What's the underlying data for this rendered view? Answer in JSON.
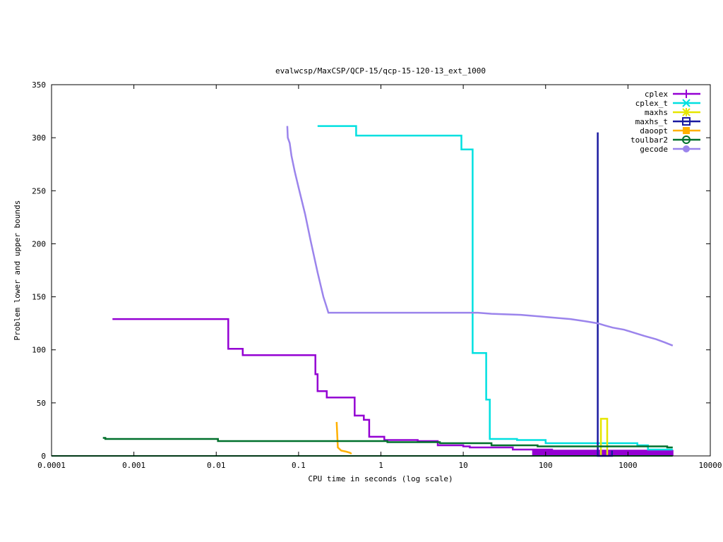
{
  "chart_data": {
    "type": "line",
    "title": "evalwcsp/MaxCSP/QCP-15/qcp-15-120-13_ext_1000",
    "xlabel": "CPU time in seconds (log scale)",
    "ylabel": "Problem lower and upper bounds",
    "xscale": "log",
    "xlim": [
      0.0001,
      10000
    ],
    "ylim": [
      0,
      350
    ],
    "xticks": [
      {
        "value": 0.0001,
        "label": "0.0001"
      },
      {
        "value": 0.001,
        "label": "0.001"
      },
      {
        "value": 0.01,
        "label": "0.01"
      },
      {
        "value": 0.1,
        "label": "0.1"
      },
      {
        "value": 1,
        "label": "1"
      },
      {
        "value": 10,
        "label": "10"
      },
      {
        "value": 100,
        "label": "100"
      },
      {
        "value": 1000,
        "label": "1000"
      },
      {
        "value": 10000,
        "label": "10000"
      }
    ],
    "yticks": [
      {
        "value": 0,
        "label": "0"
      },
      {
        "value": 50,
        "label": "50"
      },
      {
        "value": 100,
        "label": "100"
      },
      {
        "value": 150,
        "label": "150"
      },
      {
        "value": 200,
        "label": "200"
      },
      {
        "value": 250,
        "label": "250"
      },
      {
        "value": 300,
        "label": "300"
      },
      {
        "value": 350,
        "label": "350"
      }
    ],
    "grid": false,
    "legend_position": "top-right",
    "series": [
      {
        "name": "cplex",
        "color": "#9400d3",
        "marker": "plus",
        "step": true,
        "points": [
          [
            0.00055,
            129
          ],
          [
            0.014,
            129
          ],
          [
            0.014,
            101
          ],
          [
            0.021,
            101
          ],
          [
            0.021,
            95
          ],
          [
            0.16,
            95
          ],
          [
            0.16,
            77
          ],
          [
            0.17,
            77
          ],
          [
            0.17,
            61
          ],
          [
            0.22,
            61
          ],
          [
            0.22,
            55
          ],
          [
            0.48,
            55
          ],
          [
            0.48,
            38
          ],
          [
            0.62,
            38
          ],
          [
            0.62,
            34
          ],
          [
            0.72,
            34
          ],
          [
            0.72,
            18
          ],
          [
            1.1,
            18
          ],
          [
            1.1,
            15
          ],
          [
            2.8,
            15
          ],
          [
            2.8,
            14
          ],
          [
            4.9,
            14
          ],
          [
            4.9,
            10
          ],
          [
            10,
            10
          ],
          [
            10,
            9
          ],
          [
            12,
            9
          ],
          [
            12,
            8
          ],
          [
            40,
            8
          ],
          [
            40,
            6
          ],
          [
            120,
            6
          ],
          [
            120,
            5
          ],
          [
            3500,
            5
          ]
        ],
        "lb_points": [
          [
            70,
            0
          ],
          [
            70,
            5
          ],
          [
            3500,
            5
          ],
          [
            3500,
            0
          ]
        ]
      },
      {
        "name": "cplex_t",
        "color": "#00e0e0",
        "marker": "cross",
        "step": true,
        "points": [
          [
            0.17,
            311
          ],
          [
            0.5,
            311
          ],
          [
            0.5,
            302
          ],
          [
            9.5,
            302
          ],
          [
            9.5,
            289
          ],
          [
            13,
            289
          ],
          [
            13,
            97
          ],
          [
            19,
            97
          ],
          [
            19,
            53
          ],
          [
            21,
            53
          ],
          [
            21,
            16
          ],
          [
            45,
            16
          ],
          [
            45,
            15
          ],
          [
            100,
            15
          ],
          [
            100,
            12
          ],
          [
            1300,
            12
          ],
          [
            1300,
            10
          ],
          [
            1750,
            10
          ],
          [
            1750,
            6
          ],
          [
            3500,
            6
          ]
        ]
      },
      {
        "name": "maxhs",
        "color": "#e6e600",
        "marker": "star",
        "step": true,
        "points": [
          [
            470,
            0
          ],
          [
            470,
            35
          ],
          [
            560,
            35
          ],
          [
            560,
            0
          ]
        ]
      },
      {
        "name": "maxhs_t",
        "color": "#1a1aa0",
        "marker": "square",
        "step": true,
        "points": [
          [
            430,
            0
          ],
          [
            430,
            305
          ],
          [
            430,
            0
          ],
          [
            640,
            0
          ],
          [
            640,
            5
          ]
        ]
      },
      {
        "name": "daoopt",
        "color": "#ffb000",
        "marker": "filled-square",
        "step": false,
        "points": [
          [
            0.29,
            32
          ],
          [
            0.3,
            8
          ],
          [
            0.33,
            5
          ],
          [
            0.38,
            4
          ],
          [
            0.42,
            3
          ],
          [
            0.44,
            2
          ]
        ]
      },
      {
        "name": "toulbar2",
        "color": "#00702c",
        "marker": "circle",
        "step": true,
        "points": [
          [
            0.00042,
            17
          ],
          [
            0.00045,
            17
          ],
          [
            0.00045,
            16
          ],
          [
            0.0105,
            16
          ],
          [
            0.0105,
            14
          ],
          [
            1.2,
            14
          ],
          [
            1.2,
            13
          ],
          [
            5.2,
            13
          ],
          [
            5.2,
            12
          ],
          [
            22,
            12
          ],
          [
            22,
            10
          ],
          [
            80,
            10
          ],
          [
            80,
            9
          ],
          [
            3000,
            9
          ],
          [
            3000,
            8
          ],
          [
            3500,
            8
          ]
        ],
        "lb_points": [
          [
            0.0001,
            0
          ],
          [
            3500,
            0
          ]
        ]
      },
      {
        "name": "gecode",
        "color": "#9b84ec",
        "marker": "filled-circle",
        "step": false,
        "points": [
          [
            0.073,
            311
          ],
          [
            0.074,
            300
          ],
          [
            0.078,
            295
          ],
          [
            0.082,
            283
          ],
          [
            0.09,
            268
          ],
          [
            0.1,
            253
          ],
          [
            0.12,
            228
          ],
          [
            0.14,
            203
          ],
          [
            0.17,
            173
          ],
          [
            0.2,
            150
          ],
          [
            0.22,
            140
          ],
          [
            0.23,
            135
          ],
          [
            0.5,
            135
          ],
          [
            3,
            135
          ],
          [
            15,
            135
          ],
          [
            22,
            134
          ],
          [
            50,
            133
          ],
          [
            100,
            131
          ],
          [
            200,
            129
          ],
          [
            300,
            127
          ],
          [
            430,
            125
          ],
          [
            520,
            123
          ],
          [
            650,
            121
          ],
          [
            900,
            119
          ],
          [
            1200,
            116
          ],
          [
            1600,
            113
          ],
          [
            2200,
            110
          ],
          [
            2800,
            107
          ],
          [
            3500,
            104
          ]
        ]
      }
    ]
  }
}
